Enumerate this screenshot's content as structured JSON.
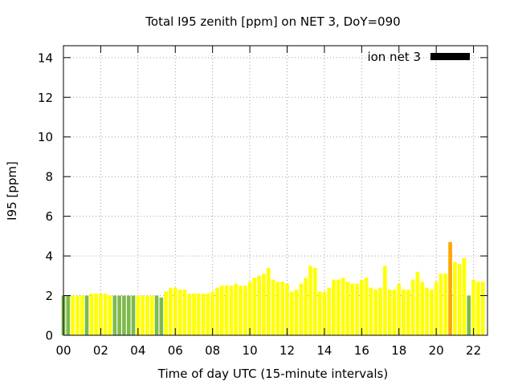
{
  "chart_data": {
    "type": "bar",
    "title": "Total I95 zenith [ppm] on NET 3, DoY=090",
    "xlabel": "Time of day UTC (15-minute intervals)",
    "ylabel": "I95 [ppm]",
    "ylim": [
      0,
      14.6
    ],
    "xlim": [
      0,
      22.75
    ],
    "yticks": [
      0,
      2,
      4,
      6,
      8,
      10,
      12,
      14
    ],
    "xticks": [
      0,
      2,
      4,
      6,
      8,
      10,
      12,
      14,
      16,
      18,
      20,
      22
    ],
    "xtick_labels": [
      "00",
      "02",
      "04",
      "06",
      "08",
      "10",
      "12",
      "14",
      "16",
      "18",
      "20",
      "22"
    ],
    "grid": true,
    "legend": {
      "placement": "top-right",
      "entries": [
        {
          "label": "ion net 3",
          "color": "#000000"
        }
      ]
    },
    "colors": {
      "green": "#7cba4c",
      "yellow": "#ffff00",
      "orange": "#ffa500"
    },
    "bar_width_hours": 0.2,
    "series": [
      {
        "x": [
          0,
          0.25,
          0.5,
          0.75,
          1,
          1.25,
          1.5,
          1.75,
          2,
          2.25,
          2.5,
          2.75,
          3,
          3.25,
          3.5,
          3.75,
          4,
          4.25,
          4.5,
          4.75,
          5,
          5.25,
          5.5,
          5.75,
          6,
          6.25,
          6.5,
          6.75,
          7,
          7.25,
          7.5,
          7.75,
          8,
          8.25,
          8.5,
          8.75,
          9,
          9.25,
          9.5,
          9.75,
          10,
          10.25,
          10.5,
          10.75,
          11,
          11.25,
          11.5,
          11.75,
          12,
          12.25,
          12.5,
          12.75,
          13,
          13.25,
          13.5,
          13.75,
          14,
          14.25,
          14.5,
          14.75,
          15,
          15.25,
          15.5,
          15.75,
          16,
          16.25,
          16.5,
          16.75,
          17,
          17.25,
          17.5,
          17.75,
          18,
          18.25,
          18.5,
          18.75,
          19,
          19.25,
          19.5,
          19.75,
          20,
          20.25,
          20.5,
          20.75,
          21,
          21.25,
          21.5,
          21.75,
          22,
          22.25,
          22.5
        ],
        "values": [
          2.0,
          2.0,
          2.0,
          2.0,
          2.0,
          2.0,
          2.1,
          2.1,
          2.1,
          2.1,
          2.0,
          2.0,
          2.0,
          2.0,
          2.0,
          2.0,
          2.0,
          2.0,
          2.0,
          2.0,
          2.0,
          1.9,
          2.2,
          2.4,
          2.4,
          2.3,
          2.3,
          2.1,
          2.1,
          2.1,
          2.1,
          2.1,
          2.2,
          2.4,
          2.5,
          2.5,
          2.5,
          2.6,
          2.5,
          2.5,
          2.7,
          2.9,
          3.0,
          3.1,
          3.4,
          2.8,
          2.7,
          2.7,
          2.6,
          2.2,
          2.3,
          2.6,
          2.9,
          3.5,
          3.4,
          2.2,
          2.2,
          2.4,
          2.8,
          2.8,
          2.9,
          2.7,
          2.6,
          2.6,
          2.8,
          2.9,
          2.4,
          2.3,
          2.4,
          3.5,
          2.3,
          2.3,
          2.6,
          2.3,
          2.3,
          2.8,
          3.2,
          2.7,
          2.4,
          2.3,
          2.7,
          3.1,
          3.1,
          4.7,
          3.7,
          3.6,
          3.9,
          2.0,
          2.8,
          2.7,
          2.7
        ],
        "colors": [
          "green",
          "green",
          "yellow",
          "yellow",
          "yellow",
          "green",
          "yellow",
          "yellow",
          "yellow",
          "yellow",
          "yellow",
          "green",
          "green",
          "green",
          "green",
          "green",
          "yellow",
          "yellow",
          "yellow",
          "yellow",
          "green",
          "green",
          "yellow",
          "yellow",
          "yellow",
          "yellow",
          "yellow",
          "yellow",
          "yellow",
          "yellow",
          "yellow",
          "yellow",
          "yellow",
          "yellow",
          "yellow",
          "yellow",
          "yellow",
          "yellow",
          "yellow",
          "yellow",
          "yellow",
          "yellow",
          "yellow",
          "yellow",
          "yellow",
          "yellow",
          "yellow",
          "yellow",
          "yellow",
          "yellow",
          "yellow",
          "yellow",
          "yellow",
          "yellow",
          "yellow",
          "yellow",
          "yellow",
          "yellow",
          "yellow",
          "yellow",
          "yellow",
          "yellow",
          "yellow",
          "yellow",
          "yellow",
          "yellow",
          "yellow",
          "yellow",
          "yellow",
          "yellow",
          "yellow",
          "yellow",
          "yellow",
          "yellow",
          "yellow",
          "yellow",
          "yellow",
          "yellow",
          "yellow",
          "yellow",
          "yellow",
          "yellow",
          "yellow",
          "orange",
          "yellow",
          "yellow",
          "yellow",
          "green",
          "yellow",
          "yellow",
          "yellow"
        ]
      }
    ]
  }
}
